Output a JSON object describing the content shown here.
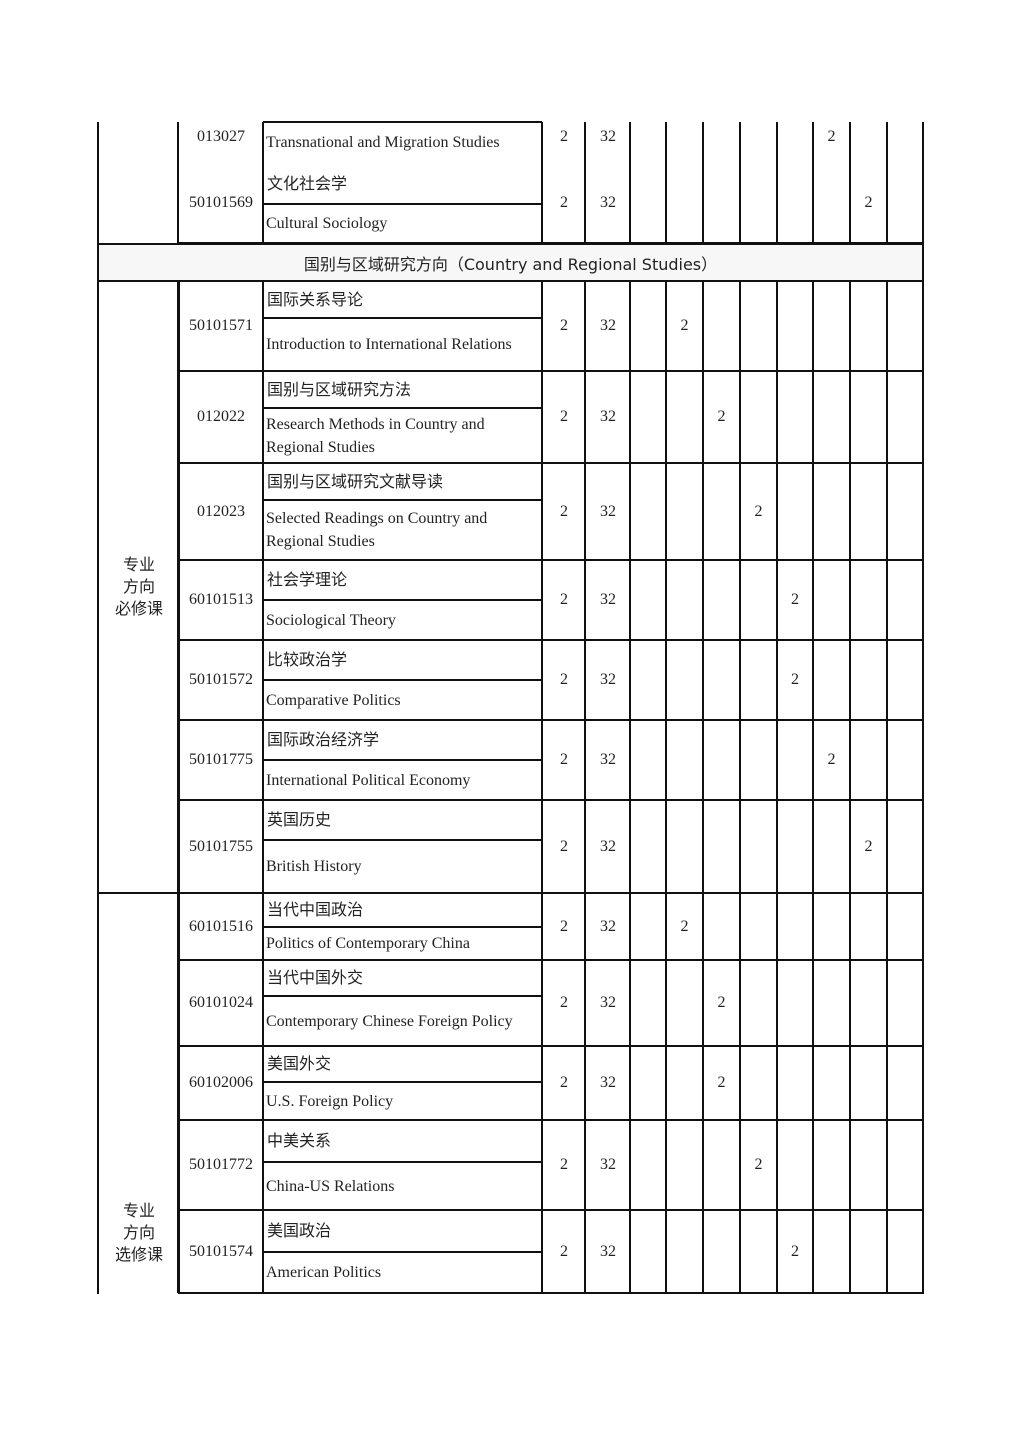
{
  "section_header": "国别与区域研究方向（Country and Regional Studies）",
  "groups": [
    {
      "label": "专业\n方向\n必修课"
    },
    {
      "label": "专业\n方向\n选修课"
    }
  ],
  "rows": [
    {
      "code": "013027",
      "zh": "",
      "en": "Transnational and Migration Studies",
      "credits": "2",
      "hours": "32",
      "semesters": [
        "",
        "",
        "",
        "",
        "",
        "2",
        "",
        ""
      ]
    },
    {
      "code": "50101569",
      "zh": "文化社会学",
      "en": "Cultural Sociology",
      "credits": "2",
      "hours": "32",
      "semesters": [
        "",
        "",
        "",
        "",
        "",
        "",
        "2",
        ""
      ]
    },
    {
      "code": "50101571",
      "zh": "国际关系导论",
      "en": "Introduction to International Relations",
      "credits": "2",
      "hours": "32",
      "semesters": [
        "",
        "2",
        "",
        "",
        "",
        "",
        "",
        ""
      ]
    },
    {
      "code": "012022",
      "zh": "国别与区域研究方法",
      "en": "Research Methods in Country and Regional Studies",
      "credits": "2",
      "hours": "32",
      "semesters": [
        "",
        "",
        "2",
        "",
        "",
        "",
        "",
        ""
      ]
    },
    {
      "code": "012023",
      "zh": "国别与区域研究文献导读",
      "en": "Selected Readings on Country and Regional Studies",
      "credits": "2",
      "hours": "32",
      "semesters": [
        "",
        "",
        "",
        "2",
        "",
        "",
        "",
        ""
      ]
    },
    {
      "code": "60101513",
      "zh": "社会学理论",
      "en": "Sociological Theory",
      "credits": "2",
      "hours": "32",
      "semesters": [
        "",
        "",
        "",
        "",
        "2",
        "",
        "",
        ""
      ]
    },
    {
      "code": "50101572",
      "zh": "比较政治学",
      "en": "Comparative Politics",
      "credits": "2",
      "hours": "32",
      "semesters": [
        "",
        "",
        "",
        "",
        "2",
        "",
        "",
        ""
      ]
    },
    {
      "code": "50101775",
      "zh": "国际政治经济学",
      "en": "International Political Economy",
      "credits": "2",
      "hours": "32",
      "semesters": [
        "",
        "",
        "",
        "",
        "",
        "2",
        "",
        ""
      ]
    },
    {
      "code": "50101755",
      "zh": "英国历史",
      "en": "British History",
      "credits": "2",
      "hours": "32",
      "semesters": [
        "",
        "",
        "",
        "",
        "",
        "",
        "2",
        ""
      ]
    },
    {
      "code": "60101516",
      "zh": "当代中国政治",
      "en": "Politics of Contemporary China",
      "credits": "2",
      "hours": "32",
      "semesters": [
        "",
        "2",
        "",
        "",
        "",
        "",
        "",
        ""
      ]
    },
    {
      "code": "60101024",
      "zh": "当代中国外交",
      "en": "Contemporary Chinese Foreign Policy",
      "credits": "2",
      "hours": "32",
      "semesters": [
        "",
        "",
        "2",
        "",
        "",
        "",
        "",
        ""
      ]
    },
    {
      "code": "60102006",
      "zh": "美国外交",
      "en": "U.S. Foreign Policy",
      "credits": "2",
      "hours": "32",
      "semesters": [
        "",
        "",
        "2",
        "",
        "",
        "",
        "",
        ""
      ]
    },
    {
      "code": "50101772",
      "zh": "中美关系",
      "en": "China-US Relations",
      "credits": "2",
      "hours": "32",
      "semesters": [
        "",
        "",
        "",
        "2",
        "",
        "",
        "",
        ""
      ]
    },
    {
      "code": "50101574",
      "zh": "美国政治",
      "en": "American Politics",
      "credits": "2",
      "hours": "32",
      "semesters": [
        "",
        "",
        "",
        "",
        "2",
        "",
        "",
        ""
      ]
    }
  ]
}
